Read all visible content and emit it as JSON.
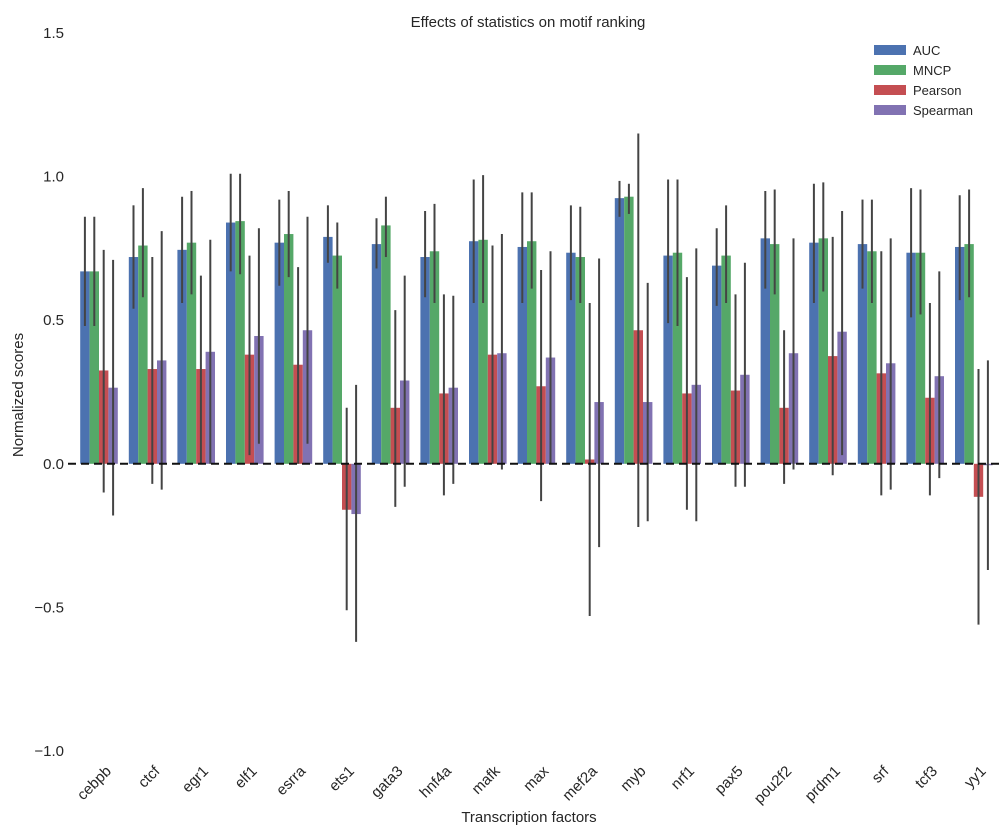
{
  "chart_data": {
    "type": "bar",
    "title": "Effects of statistics on motif ranking",
    "xlabel": "Transcription factors",
    "ylabel": "Normalized scores",
    "ylim": [
      -1.0,
      1.5
    ],
    "yticks": [
      -1.0,
      -0.5,
      0.0,
      0.5,
      1.0,
      1.5
    ],
    "ytick_labels": [
      "−1.0",
      "−0.5",
      "0.0",
      "0.5",
      "1.0",
      "1.5"
    ],
    "grid": false,
    "legend_position": "top-right",
    "reference_line": 0.0,
    "categories": [
      "cebpb",
      "ctcf",
      "egr1",
      "elf1",
      "esrra",
      "ets1",
      "gata3",
      "hnf4a",
      "mafk",
      "max",
      "mef2a",
      "myb",
      "nrf1",
      "pax5",
      "pou2f2",
      "prdm1",
      "srf",
      "tcf3",
      "yy1"
    ],
    "series": [
      {
        "name": "AUC",
        "color": "#4c72b0",
        "values": [
          0.67,
          0.72,
          0.745,
          0.84,
          0.77,
          0.79,
          0.765,
          0.72,
          0.775,
          0.755,
          0.735,
          0.925,
          0.725,
          0.69,
          0.785,
          0.77,
          0.765,
          0.735,
          0.755
        ],
        "err_low": [
          0.48,
          0.54,
          0.56,
          0.67,
          0.62,
          0.7,
          0.68,
          0.58,
          0.56,
          0.56,
          0.57,
          0.86,
          0.49,
          0.55,
          0.61,
          0.56,
          0.61,
          0.51,
          0.57
        ],
        "err_high": [
          0.86,
          0.9,
          0.93,
          1.01,
          0.92,
          0.9,
          0.855,
          0.88,
          0.99,
          0.945,
          0.9,
          0.985,
          0.99,
          0.82,
          0.95,
          0.975,
          0.92,
          0.96,
          0.935
        ]
      },
      {
        "name": "MNCP",
        "color": "#55a868",
        "values": [
          0.67,
          0.76,
          0.77,
          0.845,
          0.8,
          0.725,
          0.83,
          0.74,
          0.78,
          0.775,
          0.72,
          0.93,
          0.735,
          0.725,
          0.765,
          0.785,
          0.74,
          0.735,
          0.765
        ],
        "err_low": [
          0.48,
          0.58,
          0.59,
          0.66,
          0.65,
          0.61,
          0.72,
          0.56,
          0.56,
          0.61,
          0.56,
          0.87,
          0.48,
          0.56,
          0.59,
          0.6,
          0.56,
          0.52,
          0.58
        ],
        "err_high": [
          0.86,
          0.96,
          0.95,
          1.01,
          0.95,
          0.84,
          0.93,
          0.905,
          1.005,
          0.945,
          0.895,
          0.975,
          0.99,
          0.9,
          0.955,
          0.98,
          0.92,
          0.955,
          0.955
        ]
      },
      {
        "name": "Pearson",
        "color": "#c44e52",
        "values": [
          0.325,
          0.33,
          0.33,
          0.38,
          0.345,
          -0.16,
          0.195,
          0.245,
          0.38,
          0.27,
          0.015,
          0.465,
          0.245,
          0.255,
          0.195,
          0.375,
          0.315,
          0.23,
          -0.115
        ],
        "err_low": [
          -0.1,
          -0.07,
          0.0,
          0.03,
          0.0,
          -0.51,
          -0.15,
          -0.11,
          0.0,
          -0.13,
          -0.53,
          -0.22,
          -0.16,
          -0.08,
          -0.07,
          -0.04,
          -0.11,
          -0.11,
          -0.56
        ],
        "err_high": [
          0.745,
          0.72,
          0.655,
          0.725,
          0.685,
          0.195,
          0.535,
          0.59,
          0.76,
          0.675,
          0.56,
          1.15,
          0.65,
          0.59,
          0.465,
          0.79,
          0.74,
          0.56,
          0.33
        ]
      },
      {
        "name": "Spearman",
        "color": "#8172b2",
        "values": [
          0.265,
          0.36,
          0.39,
          0.445,
          0.465,
          -0.175,
          0.29,
          0.265,
          0.385,
          0.37,
          0.215,
          0.215,
          0.275,
          0.31,
          0.385,
          0.46,
          0.35,
          0.305,
          -0.005
        ],
        "err_low": [
          -0.18,
          -0.09,
          0.0,
          0.07,
          0.07,
          -0.62,
          -0.08,
          -0.07,
          -0.02,
          0.0,
          -0.29,
          -0.2,
          -0.2,
          -0.08,
          -0.02,
          0.03,
          -0.09,
          -0.05,
          -0.37
        ],
        "err_high": [
          0.71,
          0.81,
          0.78,
          0.82,
          0.86,
          0.275,
          0.655,
          0.585,
          0.8,
          0.74,
          0.715,
          0.63,
          0.75,
          0.7,
          0.785,
          0.88,
          0.785,
          0.67,
          0.36
        ]
      }
    ]
  }
}
